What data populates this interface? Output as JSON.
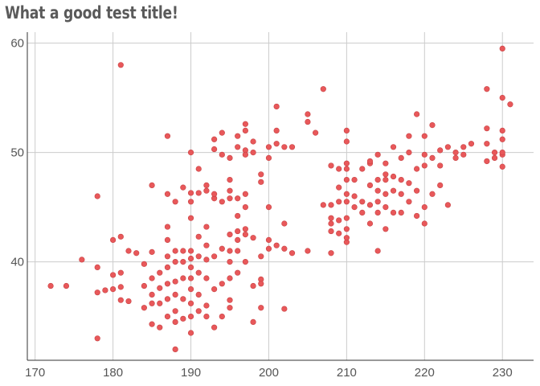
{
  "chart_data": {
    "type": "scatter",
    "title": "What a good test title!",
    "xlabel": "",
    "ylabel": "",
    "xlim": [
      169,
      234
    ],
    "ylim": [
      31,
      61
    ],
    "x_ticks": [
      170,
      180,
      190,
      200,
      210,
      220,
      230
    ],
    "y_ticks": [
      40,
      50,
      60
    ],
    "grid": true,
    "legend": "none",
    "color": "#e8585a",
    "points": [
      [
        172,
        37.8
      ],
      [
        174,
        37.8
      ],
      [
        176,
        40.2
      ],
      [
        178,
        39.5
      ],
      [
        178,
        37.2
      ],
      [
        178,
        46
      ],
      [
        178,
        33
      ],
      [
        179,
        37.4
      ],
      [
        180,
        37.5
      ],
      [
        180,
        38.8
      ],
      [
        180,
        42
      ],
      [
        181,
        37.7
      ],
      [
        181,
        39
      ],
      [
        181,
        42.3
      ],
      [
        181,
        36.5
      ],
      [
        181,
        58
      ],
      [
        182,
        36.4
      ],
      [
        182,
        41
      ],
      [
        183,
        40.8
      ],
      [
        184,
        37.8
      ],
      [
        184,
        39.8
      ],
      [
        184,
        35.8
      ],
      [
        185,
        36.2
      ],
      [
        185,
        37
      ],
      [
        185,
        34.3
      ],
      [
        185,
        38.5
      ],
      [
        185,
        40.9
      ],
      [
        185,
        47
      ],
      [
        186,
        36.2
      ],
      [
        186,
        37.6
      ],
      [
        186,
        39
      ],
      [
        186,
        34
      ],
      [
        187,
        35
      ],
      [
        187,
        36.6
      ],
      [
        187,
        38
      ],
      [
        187,
        39.5
      ],
      [
        187,
        40.5
      ],
      [
        187,
        42
      ],
      [
        187,
        43.2
      ],
      [
        187,
        51.5
      ],
      [
        187,
        46.2
      ],
      [
        188,
        34.5
      ],
      [
        188,
        35.5
      ],
      [
        188,
        37
      ],
      [
        188,
        38.2
      ],
      [
        188,
        40
      ],
      [
        188,
        41
      ],
      [
        188,
        45.5
      ],
      [
        188,
        32
      ],
      [
        189,
        34.8
      ],
      [
        189,
        36.6
      ],
      [
        189,
        38.5
      ],
      [
        189,
        40
      ],
      [
        189,
        41
      ],
      [
        189,
        46.8
      ],
      [
        190,
        33.5
      ],
      [
        190,
        35
      ],
      [
        190,
        36.2
      ],
      [
        190,
        37.5
      ],
      [
        190,
        38.5
      ],
      [
        190,
        39.5
      ],
      [
        190,
        40.3
      ],
      [
        190,
        41
      ],
      [
        190,
        44
      ],
      [
        190,
        45.5
      ],
      [
        190,
        46.3
      ],
      [
        190,
        50
      ],
      [
        191,
        35.5
      ],
      [
        191,
        37
      ],
      [
        191,
        39
      ],
      [
        191,
        40.5
      ],
      [
        191,
        42.3
      ],
      [
        191,
        46.3
      ],
      [
        191,
        48.5
      ],
      [
        192,
        36
      ],
      [
        192,
        38.5
      ],
      [
        192,
        40.2
      ],
      [
        192,
        41.5
      ],
      [
        192,
        43.2
      ],
      [
        192,
        46.5
      ],
      [
        192,
        47
      ],
      [
        192,
        35
      ],
      [
        193,
        34
      ],
      [
        193,
        37.5
      ],
      [
        193,
        40.5
      ],
      [
        193,
        45.8
      ],
      [
        193,
        50.3
      ],
      [
        193,
        51.2
      ],
      [
        193,
        46.2
      ],
      [
        194,
        35
      ],
      [
        194,
        38
      ],
      [
        194,
        41.2
      ],
      [
        194,
        45.5
      ],
      [
        194,
        49.8
      ],
      [
        194,
        51.8
      ],
      [
        195,
        35.8
      ],
      [
        195,
        36.5
      ],
      [
        195,
        38.5
      ],
      [
        195,
        40
      ],
      [
        195,
        41
      ],
      [
        195,
        42.5
      ],
      [
        195,
        45.8
      ],
      [
        195,
        46.5
      ],
      [
        195,
        47.5
      ],
      [
        195,
        49.5
      ],
      [
        196,
        39
      ],
      [
        196,
        41
      ],
      [
        196,
        42
      ],
      [
        196,
        42.8
      ],
      [
        196,
        44.2
      ],
      [
        196,
        45.8
      ],
      [
        196,
        50.5
      ],
      [
        196,
        51.5
      ],
      [
        197,
        40
      ],
      [
        197,
        42.5
      ],
      [
        197,
        43
      ],
      [
        197,
        45
      ],
      [
        197,
        46.2
      ],
      [
        197,
        50.2
      ],
      [
        197,
        52
      ],
      [
        197,
        52.6
      ],
      [
        197,
        49.8
      ],
      [
        198,
        34.5
      ],
      [
        198,
        37.8
      ],
      [
        198,
        42.2
      ],
      [
        198,
        50
      ],
      [
        198,
        51
      ],
      [
        199,
        35.8
      ],
      [
        199,
        38.4
      ],
      [
        199,
        40.5
      ],
      [
        199,
        48
      ],
      [
        199,
        47.3
      ],
      [
        199,
        38
      ],
      [
        200,
        41.2
      ],
      [
        200,
        42
      ],
      [
        200,
        45
      ],
      [
        200,
        50.5
      ],
      [
        200,
        49.5
      ],
      [
        201,
        50.8
      ],
      [
        201,
        52
      ],
      [
        201,
        54.2
      ],
      [
        201,
        41.5
      ],
      [
        202,
        35.7
      ],
      [
        202,
        41.2
      ],
      [
        202,
        43.5
      ],
      [
        202,
        50.5
      ],
      [
        203,
        40.8
      ],
      [
        203,
        50.5
      ],
      [
        205,
        41
      ],
      [
        205,
        52.8
      ],
      [
        205,
        53.5
      ],
      [
        206,
        51.8
      ],
      [
        207,
        55.8
      ],
      [
        207,
        45.2
      ],
      [
        208,
        40.8
      ],
      [
        208,
        42.8
      ],
      [
        208,
        43.5
      ],
      [
        208,
        44
      ],
      [
        208,
        45.2
      ],
      [
        208,
        48.8
      ],
      [
        209,
        42.6
      ],
      [
        209,
        43.8
      ],
      [
        209,
        45.5
      ],
      [
        209,
        46.8
      ],
      [
        209,
        48.5
      ],
      [
        210,
        41.8
      ],
      [
        210,
        42.2
      ],
      [
        210,
        43
      ],
      [
        210,
        44
      ],
      [
        210,
        45.5
      ],
      [
        210,
        46.2
      ],
      [
        210,
        47.5
      ],
      [
        210,
        48.5
      ],
      [
        210,
        49
      ],
      [
        210,
        51
      ],
      [
        210,
        52
      ],
      [
        211,
        45
      ],
      [
        211,
        46
      ],
      [
        211,
        47.5
      ],
      [
        212,
        44.5
      ],
      [
        212,
        45.5
      ],
      [
        212,
        48.5
      ],
      [
        213,
        43.5
      ],
      [
        213,
        45.2
      ],
      [
        213,
        47
      ],
      [
        213,
        49
      ],
      [
        213,
        49.2
      ],
      [
        214,
        41
      ],
      [
        214,
        44.5
      ],
      [
        214,
        45.5
      ],
      [
        214,
        46.5
      ],
      [
        214,
        47.5
      ],
      [
        214,
        49.8
      ],
      [
        215,
        43
      ],
      [
        215,
        45
      ],
      [
        215,
        46.2
      ],
      [
        215,
        47.5
      ],
      [
        215,
        48
      ],
      [
        215,
        49
      ],
      [
        216,
        44.5
      ],
      [
        216,
        46.5
      ],
      [
        216,
        47.8
      ],
      [
        216,
        50.5
      ],
      [
        217,
        44.5
      ],
      [
        217,
        46.2
      ],
      [
        217,
        47.5
      ],
      [
        217,
        49.5
      ],
      [
        218,
        45.5
      ],
      [
        218,
        47.2
      ],
      [
        218,
        50
      ],
      [
        218,
        51.5
      ],
      [
        219,
        44.2
      ],
      [
        219,
        46.5
      ],
      [
        219,
        48.5
      ],
      [
        219,
        53.5
      ],
      [
        220,
        43.5
      ],
      [
        220,
        45
      ],
      [
        220,
        48.8
      ],
      [
        220,
        49.8
      ],
      [
        220,
        51.5
      ],
      [
        221,
        46.2
      ],
      [
        221,
        49.5
      ],
      [
        221,
        52.5
      ],
      [
        222,
        47
      ],
      [
        222,
        48.8
      ],
      [
        222,
        50.2
      ],
      [
        223,
        45.2
      ],
      [
        223,
        50.5
      ],
      [
        224,
        49.5
      ],
      [
        224,
        50
      ],
      [
        225,
        49.8
      ],
      [
        225,
        50.5
      ],
      [
        226,
        50.8
      ],
      [
        228,
        49.2
      ],
      [
        228,
        50.8
      ],
      [
        228,
        52.2
      ],
      [
        228,
        55.8
      ],
      [
        229,
        49.5
      ],
      [
        229,
        50
      ],
      [
        230,
        48.7
      ],
      [
        230,
        49.8
      ],
      [
        230,
        50
      ],
      [
        230,
        51.2
      ],
      [
        230,
        52
      ],
      [
        230,
        55
      ],
      [
        230,
        59.5
      ],
      [
        231,
        54.4
      ]
    ]
  }
}
